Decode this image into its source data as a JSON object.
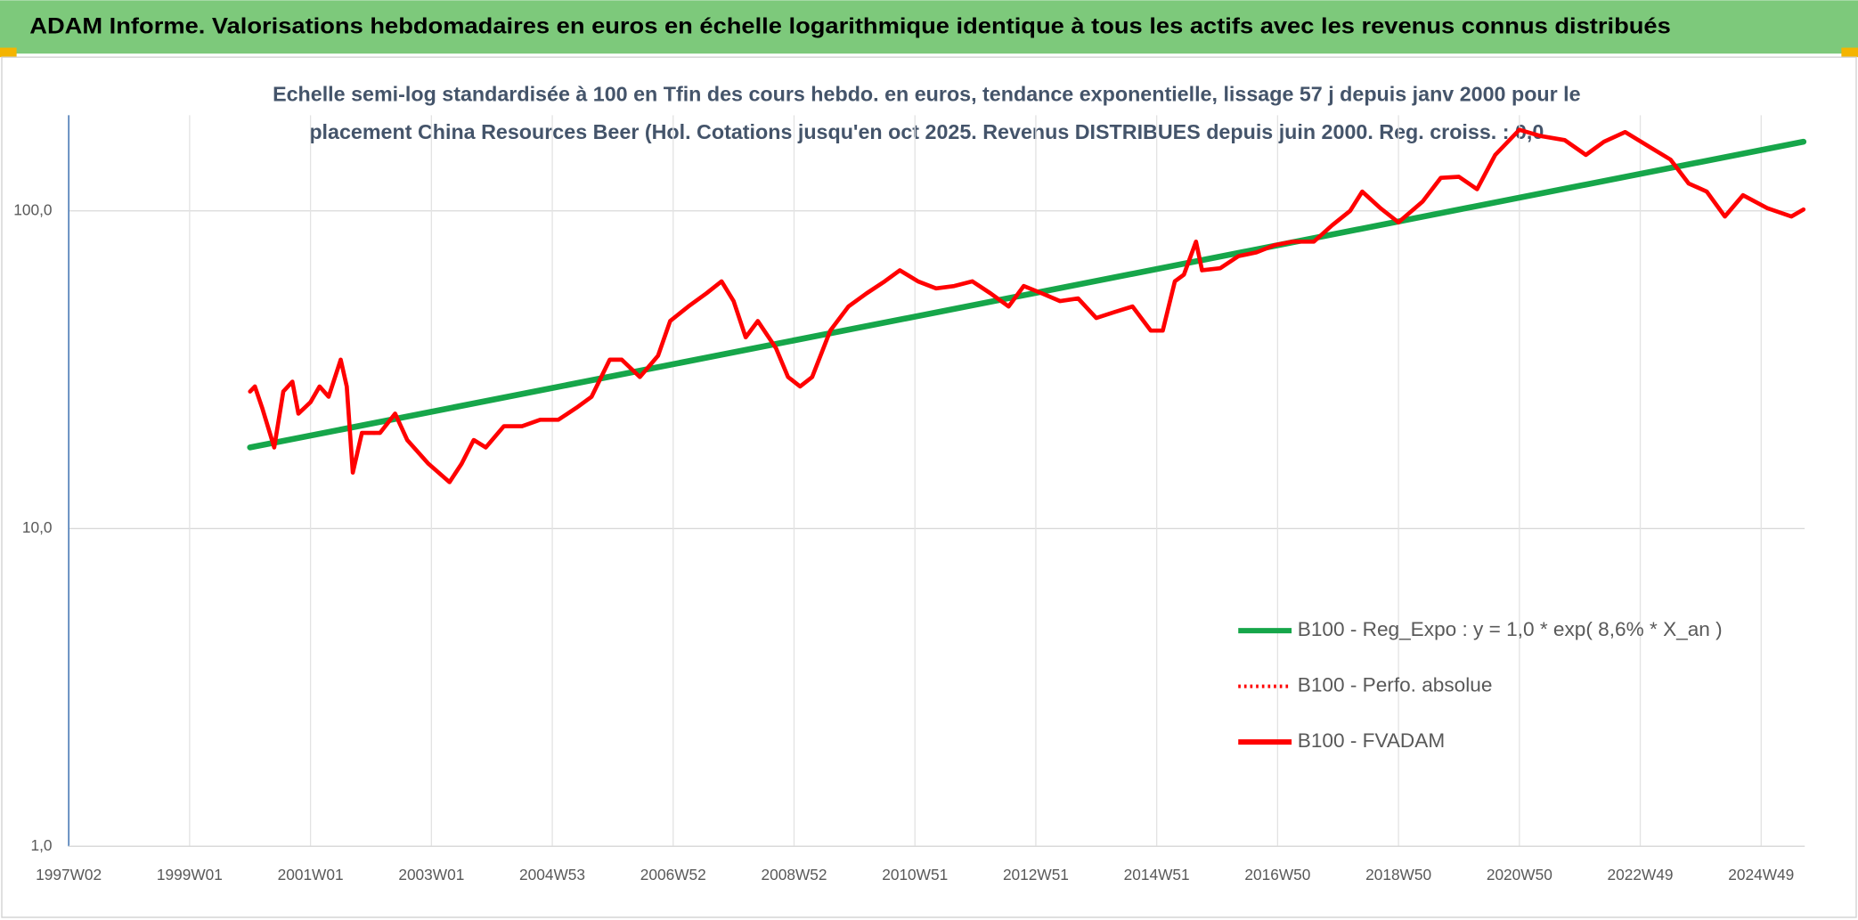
{
  "chart_data": {
    "type": "line",
    "header": "ADAM Informe. Valorisations hebdomadaires en euros en échelle logarithmique identique à tous les actifs avec les revenus connus distribués",
    "title": "Echelle semi-log standardisée à 100 en Tfin des cours hebdo. en euros, tendance exponentielle, lissage 57 j depuis janv 2000 pour le placement China Resources Beer (Hol. Cotations jusqu'en oct 2025. Revenus DISTRIBUES depuis juin 2000. Reg. croiss. : 0,0",
    "log_scale": true,
    "grid": true,
    "legend": "lower right",
    "xlim": [
      1997,
      2025.72
    ],
    "ylim": [
      1,
      200
    ],
    "yticks": [
      {
        "value": 1,
        "label": "1,0"
      },
      {
        "value": 10,
        "label": "10,0"
      },
      {
        "value": 100,
        "label": "100,0"
      }
    ],
    "xticks": [
      {
        "value": 1997,
        "label": "1997W02"
      },
      {
        "value": 1999,
        "label": "1999W01"
      },
      {
        "value": 2001,
        "label": "2001W01"
      },
      {
        "value": 2003,
        "label": "2003W01"
      },
      {
        "value": 2005,
        "label": "2004W53"
      },
      {
        "value": 2007,
        "label": "2006W52"
      },
      {
        "value": 2009,
        "label": "2008W52"
      },
      {
        "value": 2011,
        "label": "2010W51"
      },
      {
        "value": 2013,
        "label": "2012W51"
      },
      {
        "value": 2015,
        "label": "2014W51"
      },
      {
        "value": 2017,
        "label": "2016W50"
      },
      {
        "value": 2019,
        "label": "2018W50"
      },
      {
        "value": 2021,
        "label": "2020W50"
      },
      {
        "value": 2023,
        "label": "2022W49"
      },
      {
        "value": 2025,
        "label": "2024W49"
      }
    ],
    "x": [
      2000.0,
      2000.08,
      2000.2,
      2000.4,
      2000.55,
      2000.7,
      2000.8,
      2001.0,
      2001.15,
      2001.3,
      2001.5,
      2001.6,
      2001.7,
      2001.85,
      2002.15,
      2002.4,
      2002.6,
      2002.95,
      2003.3,
      2003.5,
      2003.7,
      2003.9,
      2004.2,
      2004.5,
      2004.8,
      2005.1,
      2005.4,
      2005.65,
      2005.95,
      2006.15,
      2006.45,
      2006.75,
      2006.95,
      2007.25,
      2007.55,
      2007.8,
      2008.0,
      2008.2,
      2008.4,
      2008.7,
      2008.9,
      2009.1,
      2009.3,
      2009.6,
      2009.9,
      2010.2,
      2010.5,
      2010.75,
      2011.05,
      2011.35,
      2011.65,
      2011.95,
      2012.25,
      2012.55,
      2012.8,
      2013.1,
      2013.4,
      2013.7,
      2014.0,
      2014.3,
      2014.6,
      2014.9,
      2015.1,
      2015.3,
      2015.45,
      2015.65,
      2015.75,
      2016.05,
      2016.35,
      2016.65,
      2016.95,
      2017.25,
      2017.6,
      2017.9,
      2018.2,
      2018.4,
      2018.7,
      2019.0,
      2019.4,
      2019.7,
      2020.0,
      2020.3,
      2020.6,
      2021.0,
      2021.35,
      2021.75,
      2022.1,
      2022.4,
      2022.75,
      2023.2,
      2023.5,
      2023.8,
      2024.1,
      2024.4,
      2024.7,
      2025.1,
      2025.5,
      2025.7
    ],
    "series": [
      {
        "name": "B100 - Reg_Expo : y = 1,0 * exp( 8,6% *  X_an )",
        "color": "#16a64a",
        "style": "solid",
        "x": [
          2000.0,
          2025.7
        ],
        "values": [
          18,
          165
        ]
      },
      {
        "name": "B100 - Perfo. absolue",
        "color": "#ff0000",
        "style": "dotted",
        "values": [
          27,
          28,
          24,
          18,
          27,
          29,
          23,
          25,
          28,
          26,
          34,
          28,
          15,
          20,
          20,
          23,
          19,
          16,
          14,
          16,
          19,
          18,
          21,
          21,
          22,
          22,
          24,
          26,
          34,
          34,
          30,
          35,
          45,
          50,
          55,
          60,
          52,
          40,
          45,
          37,
          30,
          28,
          30,
          42,
          50,
          55,
          60,
          65,
          60,
          57,
          58,
          60,
          55,
          50,
          58,
          55,
          52,
          53,
          46,
          48,
          50,
          42,
          42,
          60,
          63,
          80,
          65,
          66,
          72,
          74,
          78,
          80,
          80,
          90,
          100,
          115,
          102,
          92,
          107,
          127,
          128,
          117,
          150,
          180,
          172,
          167,
          150,
          165,
          177,
          157,
          145,
          122,
          115,
          96,
          112,
          102,
          96,
          101
        ]
      },
      {
        "name": "B100 - FVADAM",
        "color": "#ff0000",
        "style": "solid",
        "values": [
          27,
          28,
          24,
          18,
          27,
          29,
          23,
          25,
          28,
          26,
          34,
          28,
          15,
          20,
          20,
          23,
          19,
          16,
          14,
          16,
          19,
          18,
          21,
          21,
          22,
          22,
          24,
          26,
          34,
          34,
          30,
          35,
          45,
          50,
          55,
          60,
          52,
          40,
          45,
          37,
          30,
          28,
          30,
          42,
          50,
          55,
          60,
          65,
          60,
          57,
          58,
          60,
          55,
          50,
          58,
          55,
          52,
          53,
          46,
          48,
          50,
          42,
          42,
          60,
          63,
          80,
          65,
          66,
          72,
          74,
          78,
          80,
          80,
          90,
          100,
          115,
          102,
          92,
          107,
          127,
          128,
          117,
          150,
          180,
          172,
          167,
          150,
          165,
          177,
          157,
          145,
          122,
          115,
          96,
          112,
          102,
          96,
          101
        ]
      }
    ]
  }
}
